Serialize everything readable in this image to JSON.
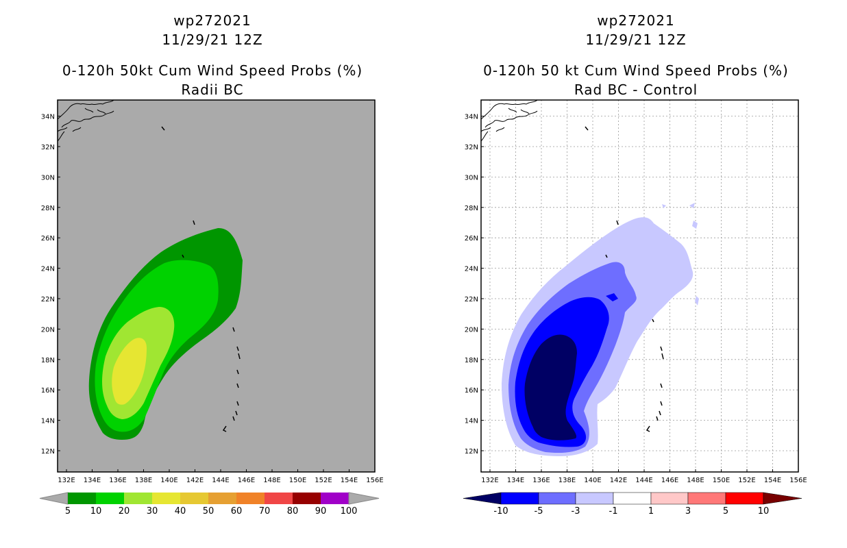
{
  "left": {
    "line1": "wp272021",
    "line2": "11/29/21 12Z",
    "line3": "0-120h 50kt Cum Wind Speed Probs (%)",
    "line4": "Radii BC",
    "background": "#aaaaaa",
    "colorbar": {
      "colors": [
        "#009600",
        "#00d200",
        "#a0e632",
        "#e6e632",
        "#e6c832",
        "#e6a032",
        "#f08228",
        "#f04646",
        "#960000",
        "#a000c8"
      ],
      "labels": [
        "5",
        "10",
        "20",
        "30",
        "40",
        "50",
        "60",
        "70",
        "80",
        "90",
        "100"
      ]
    }
  },
  "right": {
    "line1": "wp272021",
    "line2": "11/29/21 12Z",
    "line3": "0-120h 50 kt Cum Wind Speed Probs (%)",
    "line4": "Rad BC - Control",
    "background": "#ffffff",
    "colorbar": {
      "colors": [
        "#000064",
        "#0000ff",
        "#6e6eff",
        "#c8c8ff",
        "#ffffff",
        "#ffc8c8",
        "#ff7878",
        "#ff0000",
        "#780000"
      ],
      "labels": [
        "-10",
        "-5",
        "-3",
        "-1",
        "1",
        "3",
        "5",
        "10"
      ]
    }
  },
  "axes": {
    "lon_labels": [
      "132E",
      "134E",
      "136E",
      "138E",
      "140E",
      "142E",
      "144E",
      "146E",
      "148E",
      "150E",
      "152E",
      "154E",
      "156E"
    ],
    "lat_labels": [
      "12N",
      "14N",
      "16N",
      "18N",
      "20N",
      "22N",
      "24N",
      "26N",
      "28N",
      "30N",
      "32N",
      "34N"
    ]
  }
}
